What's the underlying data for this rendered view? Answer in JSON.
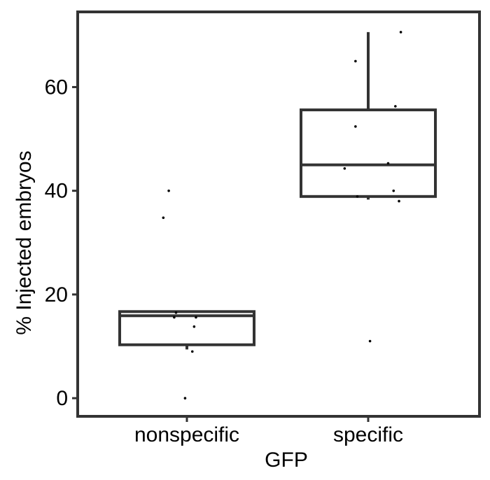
{
  "chart_data": {
    "type": "boxplot",
    "xlabel": "GFP",
    "ylabel": "% Injected embryos",
    "categories": [
      "nonspecific",
      "specific"
    ],
    "ylim": [
      -3.5,
      74.5
    ],
    "y_ticks": [
      0,
      20,
      40,
      60
    ],
    "grid": false,
    "boxes": [
      {
        "category": "nonspecific",
        "whisker_low": 9.4,
        "q1": 10.3,
        "median": 15.9,
        "q3": 16.7,
        "whisker_high": 16.7
      },
      {
        "category": "specific",
        "whisker_low": 38.3,
        "q1": 38.9,
        "median": 45.0,
        "q3": 55.6,
        "whisker_high": 70.6
      }
    ],
    "points": [
      {
        "category": "nonspecific",
        "x_jitter": -0.1,
        "y": 40.0
      },
      {
        "category": "nonspecific",
        "x_jitter": -0.13,
        "y": 34.8
      },
      {
        "category": "nonspecific",
        "x_jitter": -0.06,
        "y": 16.5
      },
      {
        "category": "nonspecific",
        "x_jitter": -0.07,
        "y": 15.6
      },
      {
        "category": "nonspecific",
        "x_jitter": 0.05,
        "y": 15.6
      },
      {
        "category": "nonspecific",
        "x_jitter": 0.04,
        "y": 13.8
      },
      {
        "category": "nonspecific",
        "x_jitter": 0.03,
        "y": 9.0
      },
      {
        "category": "nonspecific",
        "x_jitter": -0.01,
        "y": 0.0
      },
      {
        "category": "specific",
        "x_jitter": 0.18,
        "y": 70.6
      },
      {
        "category": "specific",
        "x_jitter": -0.07,
        "y": 65.0
      },
      {
        "category": "specific",
        "x_jitter": 0.15,
        "y": 56.3
      },
      {
        "category": "specific",
        "x_jitter": -0.07,
        "y": 52.4
      },
      {
        "category": "specific",
        "x_jitter": 0.11,
        "y": 45.3
      },
      {
        "category": "specific",
        "x_jitter": -0.13,
        "y": 44.3
      },
      {
        "category": "specific",
        "x_jitter": 0.14,
        "y": 40.0
      },
      {
        "category": "specific",
        "x_jitter": -0.06,
        "y": 38.9
      },
      {
        "category": "specific",
        "x_jitter": 0.17,
        "y": 38.0
      },
      {
        "category": "specific",
        "x_jitter": 0.01,
        "y": 11.0
      }
    ],
    "colors": {
      "box": "#333333",
      "point": "#000000",
      "frame": "#333333"
    }
  }
}
